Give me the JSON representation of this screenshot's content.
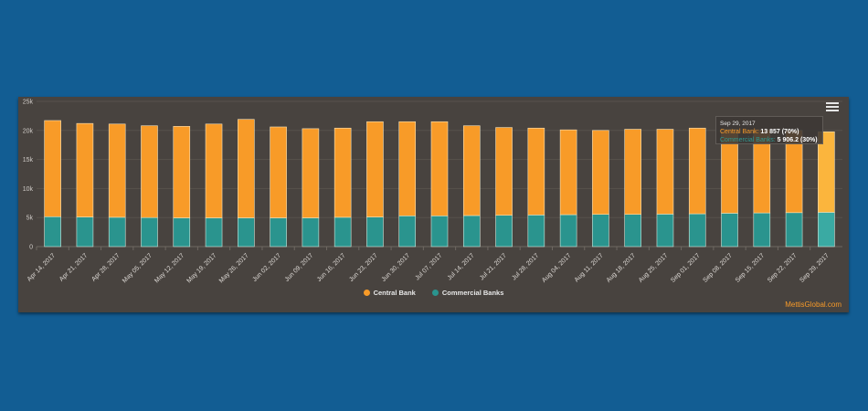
{
  "chart_data": {
    "type": "bar",
    "stacked": true,
    "title": "",
    "xlabel": "",
    "ylabel": "",
    "ylim": [
      0,
      25000
    ],
    "yticks": [
      "0",
      "5k",
      "10k",
      "15k",
      "20k",
      "25k"
    ],
    "ytick_values": [
      0,
      5000,
      10000,
      15000,
      20000,
      25000
    ],
    "grid": true,
    "legend_position": "bottom-center",
    "categories": [
      "Apr 14, 2017",
      "Apr 21, 2017",
      "Apr 28, 2017",
      "May 05, 2017",
      "May 12, 2017",
      "May 19, 2017",
      "May 26, 2017",
      "Jun 02, 2017",
      "Jun 09, 2017",
      "Jun 16, 2017",
      "Jun 23, 2017",
      "Jun 30, 2017",
      "Jul 07, 2017",
      "Jul 14, 2017",
      "Jul 21, 2017",
      "Jul 28, 2017",
      "Aug 04, 2017",
      "Aug 11, 2017",
      "Aug 18, 2017",
      "Aug 25, 2017",
      "Sep 01, 2017",
      "Sep 08, 2017",
      "Sep 15, 2017",
      "Sep 22, 2017",
      "Sep 29, 2017"
    ],
    "series": [
      {
        "name": "Commercial Banks",
        "color": "#2a948e",
        "values": [
          5150,
          5100,
          5050,
          5000,
          4950,
          4950,
          4950,
          4950,
          4950,
          5050,
          5100,
          5300,
          5300,
          5350,
          5400,
          5450,
          5500,
          5550,
          5550,
          5600,
          5650,
          5750,
          5800,
          5850,
          5906.2
        ]
      },
      {
        "name": "Central Bank",
        "color": "#f89b28",
        "values": [
          16550,
          16100,
          16050,
          15800,
          15750,
          16150,
          16950,
          15650,
          15350,
          15350,
          16400,
          16200,
          16200,
          15450,
          15100,
          14950,
          14600,
          14450,
          14650,
          14600,
          14750,
          14450,
          14300,
          14150,
          13857
        ]
      }
    ],
    "highlighted_index": 24
  },
  "tooltip": {
    "date": "Sep 29, 2017",
    "central_label": "Central Bank:",
    "central_value": "13 857 (70%)",
    "commercial_label": "Commercial Banks:",
    "commercial_value": "5 906.2 (30%)"
  },
  "legend": {
    "items": [
      {
        "label": "Central Bank",
        "color": "#f89b28"
      },
      {
        "label": "Commercial Banks",
        "color": "#2a948e"
      }
    ]
  },
  "credits": "MettisGlobal.com",
  "menu": {
    "icon": "hamburger-menu-icon"
  }
}
